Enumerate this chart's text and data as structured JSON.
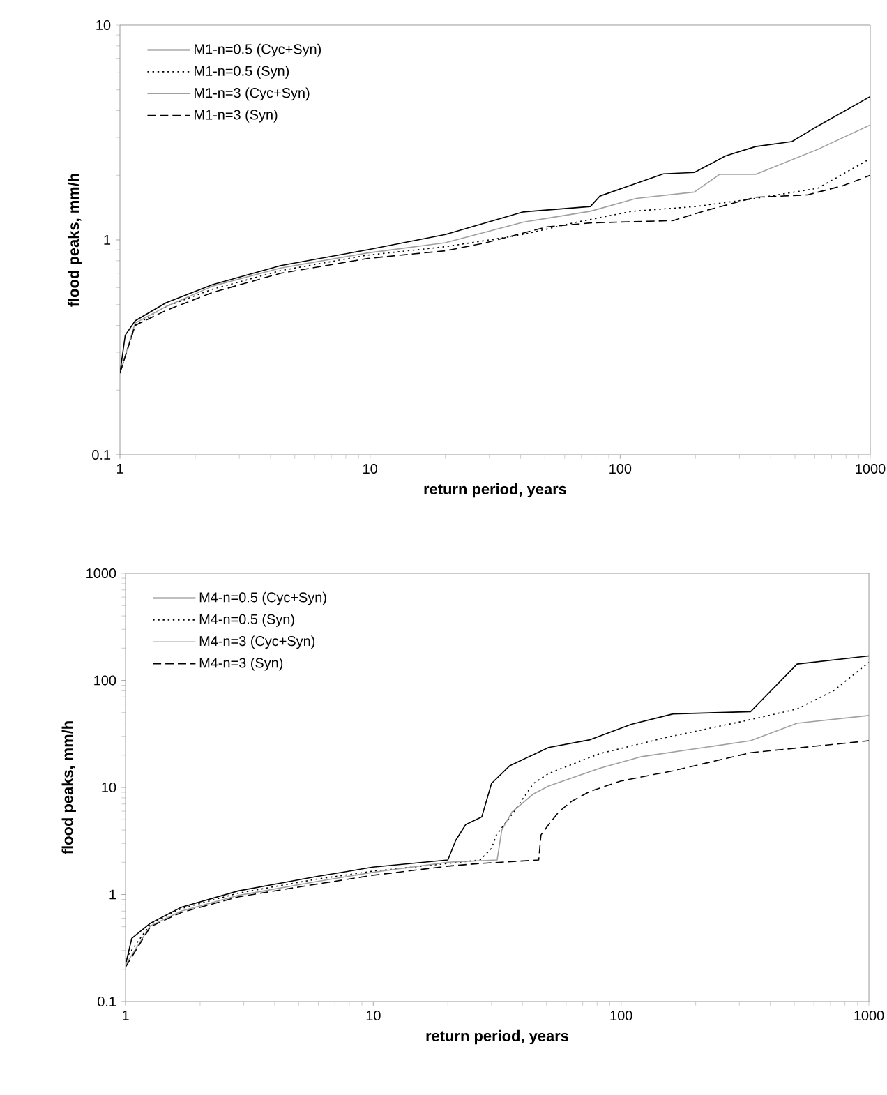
{
  "chart_data": [
    {
      "type": "line",
      "xlabel": "return period, years",
      "ylabel": "flood peaks, mm/h",
      "log": "xy",
      "grid": false,
      "legend": "top left",
      "xlim": [
        1,
        1000
      ],
      "xticks": [
        1,
        10,
        100,
        1000
      ],
      "ylim": [
        0.1,
        10
      ],
      "yticks": [
        0.1,
        1,
        10
      ],
      "series": [
        {
          "name": "M1-n=0.5 (Cyc+Syn)",
          "color": "#000000",
          "line_style": "solid",
          "x": [
            1,
            1.05,
            1.15,
            1.53,
            2.35,
            4.4,
            9.8,
            20,
            41,
            76,
            83,
            112,
            149,
            198,
            264,
            348,
            486,
            617,
            1000
          ],
          "values": [
            0.24,
            0.36,
            0.42,
            0.51,
            0.62,
            0.76,
            0.9,
            1.06,
            1.35,
            1.43,
            1.6,
            1.81,
            2.03,
            2.06,
            2.46,
            2.72,
            2.87,
            3.39,
            4.65
          ]
        },
        {
          "name": "M1-n=0.5 (Syn)",
          "color": "#000000",
          "line_style": "dotted",
          "x": [
            1,
            1.15,
            1.53,
            2.35,
            4.4,
            9.8,
            20,
            30,
            41,
            67,
            112,
            200,
            348,
            617,
            1000
          ],
          "values": [
            0.24,
            0.4,
            0.49,
            0.59,
            0.72,
            0.85,
            0.93,
            1.0,
            1.06,
            1.21,
            1.36,
            1.43,
            1.56,
            1.74,
            2.39
          ]
        },
        {
          "name": "M1-n=3 (Cyc+Syn)",
          "color": "#a0a0a0",
          "line_style": "solid",
          "x": [
            1,
            1.15,
            1.53,
            2.35,
            4.4,
            9.8,
            20,
            41,
            76,
            116,
            198,
            250,
            348,
            617,
            1000
          ],
          "values": [
            0.24,
            0.41,
            0.49,
            0.61,
            0.74,
            0.87,
            0.97,
            1.21,
            1.36,
            1.56,
            1.67,
            2.02,
            2.02,
            2.64,
            3.43
          ]
        },
        {
          "name": "M1-n=3 (Syn)",
          "color": "#000000",
          "line_style": "dashed",
          "x": [
            1,
            1.15,
            1.53,
            2.35,
            4.4,
            9.8,
            20,
            29,
            51,
            76,
            163,
            220,
            348,
            560,
            780,
            1000
          ],
          "values": [
            0.24,
            0.4,
            0.47,
            0.57,
            0.7,
            0.82,
            0.89,
            0.97,
            1.15,
            1.2,
            1.23,
            1.37,
            1.58,
            1.62,
            1.79,
            2.0
          ]
        }
      ]
    },
    {
      "type": "line",
      "xlabel": "return period, years",
      "ylabel": "flood peaks, mm/h",
      "log": "xy",
      "grid": false,
      "legend": "top left",
      "xlim": [
        1,
        1000
      ],
      "xticks": [
        1,
        10,
        100,
        1000
      ],
      "ylim": [
        0.1,
        1000
      ],
      "yticks": [
        0.1,
        1,
        10,
        100,
        1000
      ],
      "series": [
        {
          "name": "M4-n=0.5 (Cyc+Syn)",
          "color": "#000000",
          "line_style": "solid",
          "x": [
            1,
            1.06,
            1.26,
            1.68,
            2.85,
            5.9,
            9.95,
            20,
            21.5,
            23.6,
            27.4,
            30,
            35.6,
            51,
            75,
            110,
            162,
            333,
            513,
            1000
          ],
          "values": [
            0.22,
            0.39,
            0.54,
            0.76,
            1.08,
            1.47,
            1.8,
            2.1,
            3.2,
            4.5,
            5.3,
            10.9,
            16,
            23.6,
            27.9,
            38.9,
            48.6,
            51,
            142,
            169
          ]
        },
        {
          "name": "M4-n=0.5 (Syn)",
          "color": "#000000",
          "line_style": "dotted",
          "x": [
            1,
            1.26,
            1.68,
            2.85,
            5.9,
            9.95,
            20,
            27,
            30,
            31.4,
            36.3,
            44.3,
            51,
            82,
            154,
            318,
            513,
            720,
            1000
          ],
          "values": [
            0.25,
            0.53,
            0.74,
            1.03,
            1.39,
            1.65,
            1.95,
            2.1,
            2.7,
            3.6,
            5.6,
            10.9,
            13.5,
            20.7,
            29.5,
            42,
            54,
            80,
            147
          ]
        },
        {
          "name": "M4-n=3 (Cyc+Syn)",
          "color": "#a0a0a0",
          "line_style": "solid",
          "x": [
            1,
            1.26,
            1.68,
            2.85,
            5.9,
            9.95,
            20,
            31.6,
            33,
            36.3,
            44.3,
            51,
            82,
            121,
            333,
            513,
            1000
          ],
          "values": [
            0.22,
            0.51,
            0.7,
            0.98,
            1.32,
            1.61,
            2.0,
            2.1,
            4.0,
            5.9,
            8.7,
            10.3,
            15.1,
            19.4,
            27.3,
            39.8,
            47
          ]
        },
        {
          "name": "M4-n=3 (Syn)",
          "color": "#000000",
          "line_style": "dashed",
          "x": [
            1,
            1.26,
            1.68,
            2.85,
            5.9,
            9.95,
            20,
            27,
            46.5,
            47.5,
            51,
            56,
            63,
            75,
            100,
            162,
            333,
            1000
          ],
          "values": [
            0.21,
            0.5,
            0.68,
            0.95,
            1.25,
            1.51,
            1.84,
            1.95,
            2.1,
            3.6,
            4.5,
            5.9,
            7.4,
            9.2,
            11.5,
            14.3,
            21.1,
            27.3
          ]
        }
      ]
    }
  ]
}
